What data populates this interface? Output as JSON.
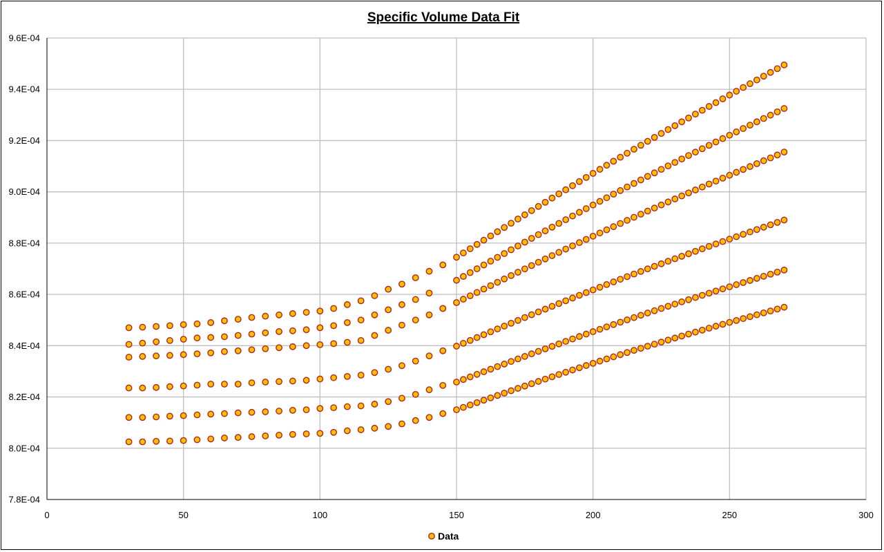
{
  "chart_data": {
    "type": "scatter",
    "title": "Specific Volume Data Fit",
    "xlim": [
      0,
      300
    ],
    "ylim": [
      0.00078,
      0.00096
    ],
    "x_ticks": [
      "0",
      "50",
      "100",
      "150",
      "200",
      "250",
      "300"
    ],
    "y_ticks": [
      "7.8E-04",
      "8.0E-04",
      "8.2E-04",
      "8.4E-04",
      "8.6E-04",
      "8.8E-04",
      "9.0E-04",
      "9.2E-04",
      "9.4E-04",
      "9.6E-04"
    ],
    "grid": true,
    "legend": {
      "position": "bottom",
      "entries": [
        "Data"
      ]
    },
    "marker": {
      "fill": "#ffc000",
      "edge": "#c0392b"
    },
    "series": [
      {
        "name": "Data",
        "x": [
          30,
          35,
          40,
          45,
          50,
          55,
          60,
          65,
          70,
          75,
          80,
          85,
          90,
          95,
          100,
          105,
          110,
          115,
          120,
          125,
          130,
          135,
          140,
          145
        ],
        "curves_low_T": [
          [
            0.000847,
            0.0008472,
            0.0008475,
            0.0008478,
            0.0008482,
            0.0008485,
            0.000849,
            0.0008497,
            0.0008503,
            0.000851,
            0.0008515,
            0.000852,
            0.0008525,
            0.000853,
            0.0008535,
            0.0008545,
            0.000856,
            0.0008575,
            0.0008595,
            0.000862,
            0.000864,
            0.0008665,
            0.000869,
            0.0008715
          ],
          [
            0.0008405,
            0.000841,
            0.0008415,
            0.000842,
            0.0008425,
            0.000843,
            0.0008432,
            0.0008435,
            0.000844,
            0.0008445,
            0.000845,
            0.0008455,
            0.0008458,
            0.0008462,
            0.000847,
            0.0008478,
            0.000849,
            0.00085,
            0.000852,
            0.000854,
            0.000856,
            0.000858,
            0.0008605,
            0.0008545
          ],
          [
            0.0008355,
            0.0008358,
            0.000836,
            0.0008362,
            0.0008365,
            0.0008368,
            0.0008372,
            0.0008377,
            0.000838,
            0.0008384,
            0.0008388,
            0.0008392,
            0.0008396,
            0.00084,
            0.0008404,
            0.0008408,
            0.0008413,
            0.000842,
            0.000844,
            0.000846,
            0.000848,
            0.00085,
            0.000852,
            0.0008545
          ],
          [
            0.0008235,
            0.0008235,
            0.0008237,
            0.000824,
            0.0008243,
            0.0008246,
            0.000825,
            0.000825,
            0.000825,
            0.0008255,
            0.0008258,
            0.000826,
            0.0008262,
            0.0008265,
            0.000827,
            0.0008275,
            0.000828,
            0.0008285,
            0.0008295,
            0.0008308,
            0.0008322,
            0.000834,
            0.000836,
            0.000838
          ],
          [
            0.000812,
            0.000812,
            0.0008122,
            0.0008125,
            0.0008127,
            0.000813,
            0.0008133,
            0.0008135,
            0.0008138,
            0.000814,
            0.0008142,
            0.0008145,
            0.0008148,
            0.000815,
            0.0008155,
            0.0008158,
            0.0008162,
            0.0008165,
            0.0008172,
            0.0008182,
            0.0008195,
            0.000821,
            0.0008228,
            0.0008245
          ],
          [
            0.0008025,
            0.0008025,
            0.0008027,
            0.0008028,
            0.000803,
            0.0008033,
            0.0008036,
            0.000804,
            0.0008042,
            0.0008045,
            0.0008048,
            0.0008051,
            0.0008054,
            0.0008056,
            0.0008058,
            0.0008062,
            0.0008068,
            0.0008072,
            0.0008078,
            0.0008085,
            0.0008095,
            0.0008108,
            0.000812,
            0.0008135
          ]
        ],
        "high_T_range": {
          "x_start": 150,
          "x_end": 270,
          "x_step": 2.5
        },
        "curves_high_T": [
          {
            "start": 0.0008745,
            "end": 0.0009495
          },
          {
            "start": 0.0008655,
            "end": 0.0009325
          },
          {
            "start": 0.0008568,
            "end": 0.0009155
          },
          {
            "start": 0.0008398,
            "end": 0.000889
          },
          {
            "start": 0.0008258,
            "end": 0.0008695
          },
          {
            "start": 0.000815,
            "end": 0.000855
          }
        ]
      }
    ]
  }
}
